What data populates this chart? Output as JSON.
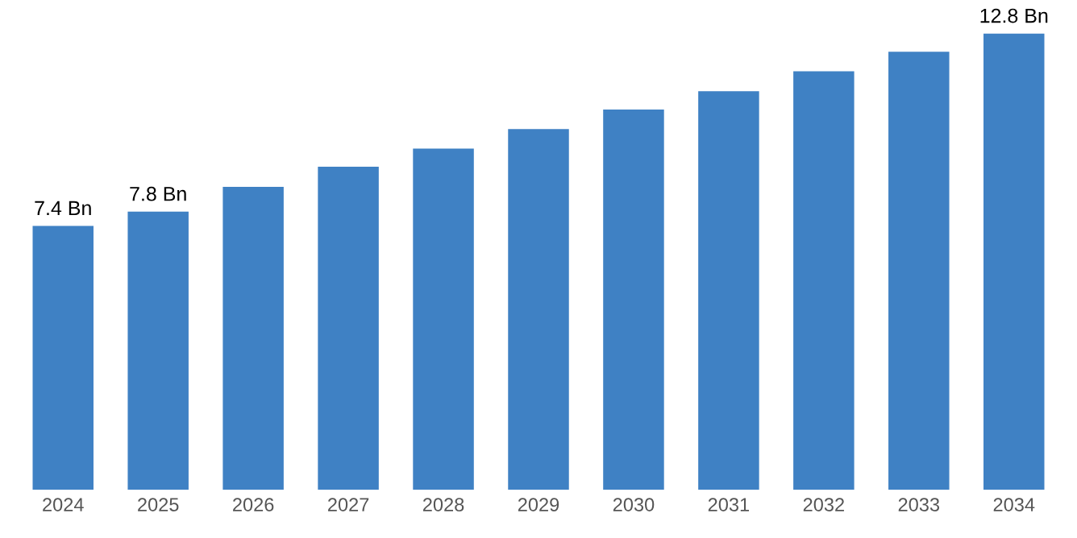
{
  "chart_data": {
    "type": "bar",
    "categories": [
      "2024",
      "2025",
      "2026",
      "2027",
      "2028",
      "2029",
      "2030",
      "2031",
      "2032",
      "2033",
      "2034"
    ],
    "values": [
      7.4,
      7.8,
      8.5,
      9.06,
      9.57,
      10.12,
      10.67,
      11.18,
      11.74,
      12.29,
      12.8
    ],
    "value_labels": [
      "7.4 Bn",
      "7.8 Bn",
      null,
      null,
      null,
      null,
      null,
      null,
      null,
      null,
      "12.8 Bn"
    ],
    "color": "#3f81c4",
    "tick_labels": "x",
    "grid": false,
    "legend": false
  }
}
